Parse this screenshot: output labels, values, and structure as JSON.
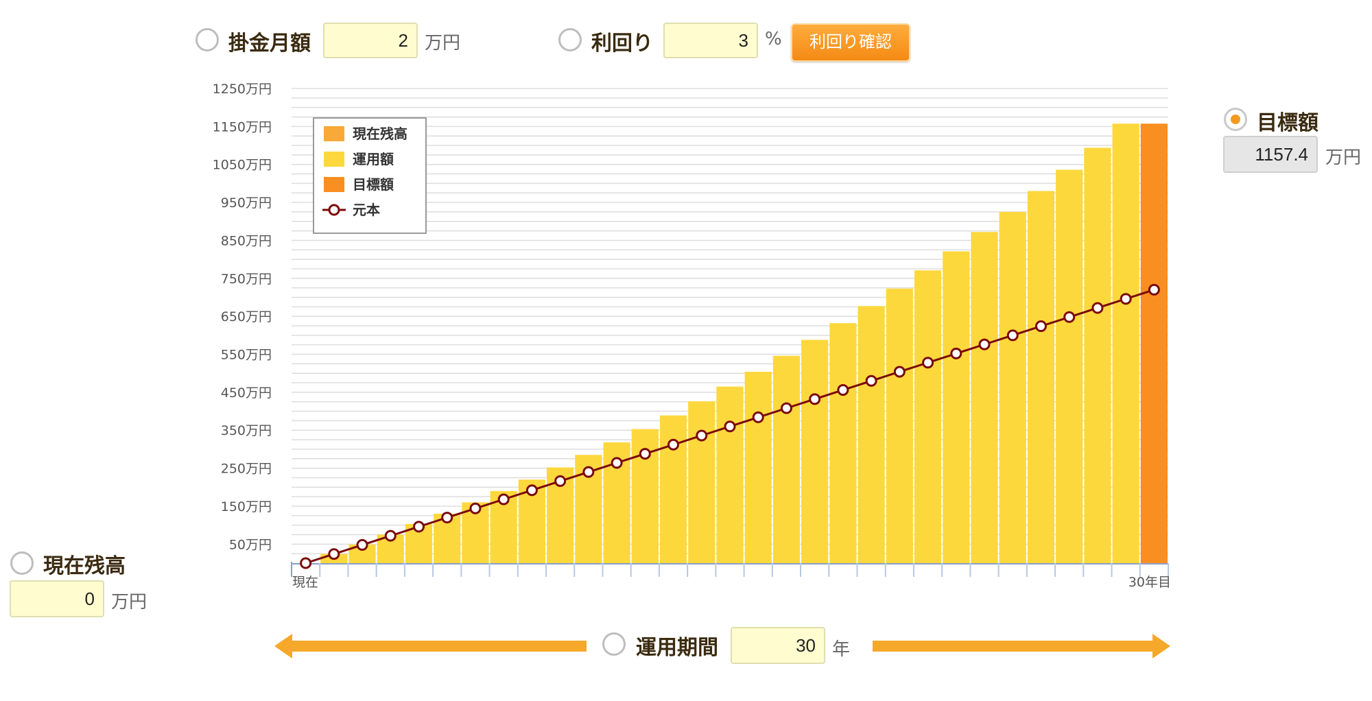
{
  "controls": {
    "monthly": {
      "label": "掛金月額",
      "value": "2",
      "unit": "万円"
    },
    "yield": {
      "label": "利回り",
      "value": "3",
      "unit": "%",
      "button_label": "利回り確認"
    },
    "target": {
      "label": "目標額",
      "value": "1157.4",
      "unit": "万円"
    },
    "current": {
      "label": "現在残高",
      "value": "0",
      "unit": "万円"
    },
    "period": {
      "label": "運用期間",
      "value": "30",
      "unit": "年"
    }
  },
  "colors": {
    "current_balance": "#f9a937",
    "invested": "#fdd83d",
    "target": "#f98e21",
    "principal": "#7a0a0a"
  },
  "chart_data": {
    "type": "bar",
    "ylim": [
      0,
      1250
    ],
    "y_ticks": [
      "50万円",
      "150万円",
      "250万円",
      "350万円",
      "450万円",
      "550万円",
      "650万円",
      "750万円",
      "850万円",
      "950万円",
      "1050万円",
      "1150万円",
      "1250万円"
    ],
    "x_first_label": "現在",
    "x_last_label": "30年目",
    "legend": {
      "position": "top-left",
      "items": [
        {
          "label": "現在残高",
          "kind": "bar",
          "color": "#f9a937"
        },
        {
          "label": "運用額",
          "kind": "bar",
          "color": "#fdd83d"
        },
        {
          "label": "目標額",
          "kind": "bar",
          "color": "#f98e21"
        },
        {
          "label": "元本",
          "kind": "line-marker",
          "color": "#7a0a0a"
        }
      ]
    },
    "series": [
      {
        "name": "運用額",
        "x": [
          1,
          2,
          3,
          4,
          5,
          6,
          7,
          8,
          9,
          10,
          11,
          12,
          13,
          14,
          15,
          16,
          17,
          18,
          19,
          20,
          21,
          22,
          23,
          24,
          25,
          26,
          27,
          28,
          29
        ],
        "values": [
          24,
          49,
          75,
          103,
          130,
          160,
          190,
          220,
          252,
          285,
          318,
          353,
          389,
          426,
          465,
          504,
          546,
          588,
          632,
          677,
          723,
          771,
          821,
          872,
          925,
          980,
          1036,
          1094,
          1157.4
        ]
      },
      {
        "name": "目標額",
        "x": [
          30
        ],
        "values": [
          1157.4
        ]
      },
      {
        "name": "元本",
        "x": [
          0,
          1,
          2,
          3,
          4,
          5,
          6,
          7,
          8,
          9,
          10,
          11,
          12,
          13,
          14,
          15,
          16,
          17,
          18,
          19,
          20,
          21,
          22,
          23,
          24,
          25,
          26,
          27,
          28,
          29,
          30
        ],
        "values": [
          0,
          24,
          48,
          72,
          96,
          120,
          144,
          168,
          192,
          216,
          240,
          264,
          288,
          312,
          336,
          360,
          384,
          408,
          432,
          456,
          480,
          504,
          528,
          552,
          576,
          600,
          624,
          648,
          672,
          696,
          720
        ]
      }
    ]
  }
}
